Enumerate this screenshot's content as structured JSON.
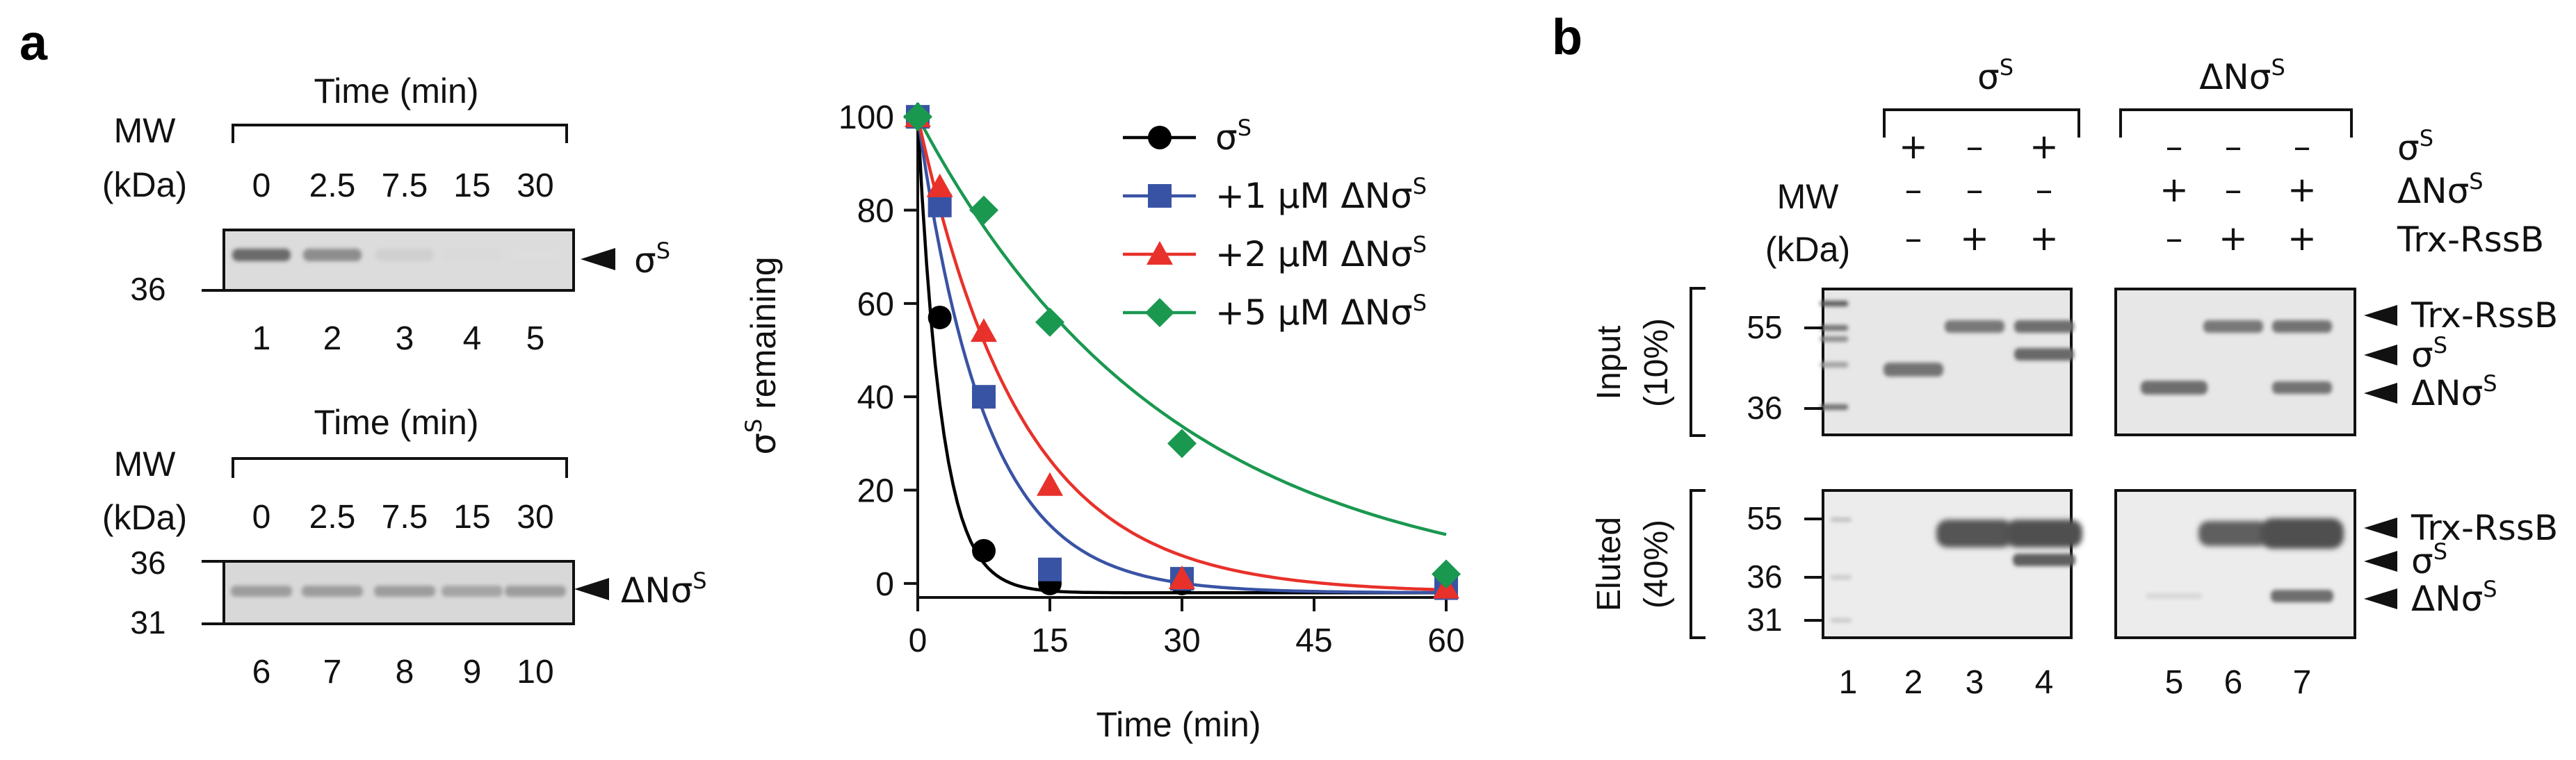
{
  "figure": {
    "panel_a_label": "a",
    "panel_b_label": "b"
  },
  "gel_a1": {
    "time_header": "Time (min)",
    "mw_label": "MW",
    "kda_label": "(kDa)",
    "times": [
      "0",
      "2.5",
      "7.5",
      "15",
      "30"
    ],
    "marker": "36",
    "band_label": "σ",
    "band_label_sup": "S",
    "lanes": [
      "1",
      "2",
      "3",
      "4",
      "5"
    ],
    "band_intensity": [
      0.85,
      0.6,
      0.12,
      0.05,
      0.03
    ]
  },
  "gel_a2": {
    "time_header": "Time (min)",
    "mw_label": "MW",
    "kda_label": "(kDa)",
    "times": [
      "0",
      "2.5",
      "7.5",
      "15",
      "30"
    ],
    "markers": [
      "36",
      "31"
    ],
    "band_label": "ΔNσ",
    "band_label_sup": "S",
    "lanes": [
      "6",
      "7",
      "8",
      "9",
      "10"
    ],
    "band_intensity": [
      0.45,
      0.45,
      0.45,
      0.4,
      0.45
    ]
  },
  "chart_data": {
    "type": "scatter",
    "xlabel": "Time (min)",
    "ylabel_main": "σ",
    "ylabel_sup": "S",
    "ylabel_rest": " remaining",
    "xlim": [
      0,
      60
    ],
    "ylim": [
      -3,
      103
    ],
    "xticks": [
      0,
      15,
      30,
      45,
      60
    ],
    "yticks": [
      0,
      20,
      40,
      60,
      80,
      100
    ],
    "series": [
      {
        "name": "σS",
        "legend": "σ",
        "legend_sup": "S",
        "marker": "circle",
        "color": "#000000",
        "x": [
          0,
          2.5,
          7.5,
          15,
          30,
          60
        ],
        "y": [
          100,
          57,
          7,
          0,
          0,
          -1
        ],
        "k": 0.37
      },
      {
        "name": "+1 µM ΔNσS",
        "legend": "+1 µM ΔNσ",
        "legend_sup": "S",
        "marker": "square",
        "color": "#3953a4",
        "x": [
          0,
          2.5,
          7.5,
          15,
          30,
          60
        ],
        "y": [
          100,
          81,
          40,
          3,
          1,
          -1
        ],
        "k": 0.13
      },
      {
        "name": "+2 µM ΔNσS",
        "legend": "+2 µM ΔNσ",
        "legend_sup": "S",
        "marker": "triangle",
        "color": "#e8312a",
        "x": [
          0,
          2.5,
          7.5,
          15,
          30,
          60
        ],
        "y": [
          100,
          85,
          54,
          21,
          1,
          -1
        ],
        "k": 0.085
      },
      {
        "name": "+5 µM ΔNσS",
        "legend": "+5 µM ΔNσ",
        "legend_sup": "S",
        "marker": "diamond",
        "color": "#1a9850",
        "x": [
          0,
          7.5,
          15,
          30,
          60
        ],
        "y": [
          100,
          80,
          56,
          30,
          2
        ],
        "k": 0.035
      }
    ]
  },
  "gel_b": {
    "group1_label": "σ",
    "group1_sup": "S",
    "group2_label": "ΔNσ",
    "group2_sup": "S",
    "mw_label": "MW",
    "kda_label": "(kDa)",
    "row_labels": [
      {
        "main": "σ",
        "sup": "S"
      },
      {
        "main": "ΔNσ",
        "sup": "S"
      },
      {
        "main": "Trx-RssB",
        "sup": ""
      }
    ],
    "signs": [
      [
        "+",
        "–",
        "+",
        "–",
        "–",
        "–"
      ],
      [
        "–",
        "–",
        "–",
        "+",
        "–",
        "+"
      ],
      [
        "–",
        "+",
        "+",
        "–",
        "+",
        "+"
      ]
    ],
    "input_label_1": "Input",
    "input_label_2": "(10%)",
    "eluted_label_1": "Eluted",
    "eluted_label_2": "(40%)",
    "input_markers": [
      "55",
      "36"
    ],
    "eluted_markers": [
      "55",
      "36",
      "31"
    ],
    "input_bands": [
      {
        "main": "Trx-RssB",
        "sup": ""
      },
      {
        "main": "σ",
        "sup": "S"
      },
      {
        "main": "ΔNσ",
        "sup": "S"
      }
    ],
    "eluted_bands": [
      {
        "main": "Trx-RssB",
        "sup": ""
      },
      {
        "main": "σ",
        "sup": "S"
      },
      {
        "main": "ΔNσ",
        "sup": "S"
      }
    ],
    "lanes": [
      "1",
      "2",
      "3",
      "4",
      "5",
      "6",
      "7"
    ]
  }
}
